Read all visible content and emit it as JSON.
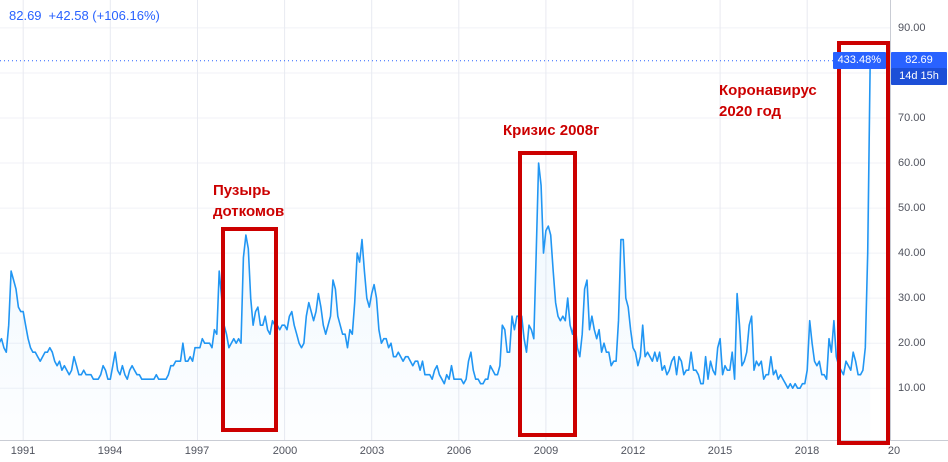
{
  "legend": {
    "price": "82.69",
    "change": "+42.58 (+106.16%)"
  },
  "price_axis": {
    "price_badge": "82.69",
    "countdown_badge": "14d 15h"
  },
  "change_badge": "433.48%",
  "annotations": {
    "dotcom": {
      "line1": "Пузырь",
      "line2": "доткомов"
    },
    "crisis2008": {
      "line1": "Кризис 2008г"
    },
    "covid": {
      "line1": "Коронавирус",
      "line2": "2020 год"
    }
  },
  "colors": {
    "accent_blue": "#2962ff",
    "line_blue": "#2196f3",
    "badge_blue": "#2962ff",
    "countdown_blue": "#1d4fd7",
    "annotation_red": "#cc0000",
    "grid_vertical": "#e8eaf1",
    "grid_horizontal": "#f0f2f7"
  },
  "chart_data": {
    "type": "line",
    "title": "Volatility index history with crisis annotations",
    "current_price": 82.69,
    "x_start_year": 1990.0,
    "x_step_months": 1,
    "x_visible_range": [
      1990.2,
      2020.85
    ],
    "ylim": [
      -1.5,
      96.2
    ],
    "y_ticks": [
      {
        "value": 90,
        "label": "90.00"
      },
      {
        "value": 80,
        "label": "80.00"
      },
      {
        "value": 70,
        "label": "70.00"
      },
      {
        "value": 60,
        "label": "60.00"
      },
      {
        "value": 50,
        "label": "50.00"
      },
      {
        "value": 40,
        "label": "40.00"
      },
      {
        "value": 30,
        "label": "30.00"
      },
      {
        "value": 20,
        "label": "20.00"
      },
      {
        "value": 10,
        "label": "10.00"
      }
    ],
    "x_ticks": [
      {
        "year": 1991,
        "label": "1991"
      },
      {
        "year": 1994,
        "label": "1994"
      },
      {
        "year": 1997,
        "label": "1997"
      },
      {
        "year": 2000,
        "label": "2000"
      },
      {
        "year": 2003,
        "label": "2003"
      },
      {
        "year": 2006,
        "label": "2006"
      },
      {
        "year": 2009,
        "label": "2009"
      },
      {
        "year": 2012,
        "label": "2012"
      },
      {
        "year": 2015,
        "label": "2015"
      },
      {
        "year": 2018,
        "label": "2018"
      },
      {
        "year": 2021,
        "label": "20"
      }
    ],
    "values": [
      23,
      22,
      20,
      21,
      19,
      18,
      24,
      36,
      34,
      32,
      28,
      27,
      27,
      24,
      21,
      19,
      18,
      18,
      17,
      16,
      17,
      18,
      18,
      19,
      18,
      16,
      15,
      16,
      14,
      15,
      14,
      13,
      14,
      17,
      15,
      13,
      13,
      14,
      13,
      13,
      13,
      12,
      12,
      12,
      13,
      15,
      14,
      12,
      12,
      15,
      18,
      14,
      13,
      15,
      13,
      12,
      14,
      15,
      14,
      13,
      13,
      12,
      12,
      12,
      12,
      12,
      12,
      13,
      12,
      12,
      12,
      12,
      13,
      15,
      15,
      16,
      16,
      16,
      20,
      16,
      16,
      17,
      16,
      19,
      19,
      19,
      21,
      20,
      20,
      20,
      19,
      23,
      22,
      36,
      30,
      24,
      22,
      19,
      20,
      21,
      20,
      21,
      20,
      39,
      44,
      41,
      30,
      24,
      27,
      28,
      24,
      24,
      26,
      23,
      22,
      25,
      24,
      24,
      23,
      24,
      24,
      23,
      26,
      27,
      24,
      22,
      20,
      19,
      20,
      26,
      29,
      27,
      25,
      27,
      31,
      28,
      24,
      22,
      24,
      26,
      34,
      32,
      26,
      24,
      22,
      22,
      19,
      23,
      22,
      29,
      40,
      38,
      43,
      36,
      30,
      28,
      31,
      33,
      30,
      23,
      20,
      21,
      21,
      19,
      20,
      17,
      17,
      18,
      17,
      16,
      17,
      17,
      16,
      15,
      16,
      16,
      14,
      16,
      13,
      13,
      13,
      12,
      14,
      15,
      13,
      12,
      11,
      13,
      12,
      15,
      12,
      12,
      12,
      12,
      11,
      12,
      16,
      18,
      14,
      12,
      12,
      11,
      11,
      12,
      12,
      15,
      14,
      13,
      13,
      15,
      24,
      23,
      18,
      18,
      26,
      23,
      26,
      26,
      26,
      21,
      18,
      24,
      23,
      21,
      40,
      60,
      55,
      40,
      45,
      46,
      44,
      36,
      29,
      26,
      25,
      26,
      25,
      30,
      24,
      22,
      25,
      19,
      17,
      22,
      32,
      34,
      23,
      26,
      23,
      21,
      23,
      18,
      20,
      18,
      18,
      15,
      16,
      16,
      25,
      43,
      43,
      30,
      28,
      23,
      19,
      18,
      15,
      17,
      24,
      17,
      18,
      17,
      16,
      18,
      16,
      18,
      14,
      15,
      13,
      14,
      16,
      17,
      13,
      17,
      16,
      13,
      14,
      14,
      18,
      14,
      14,
      13,
      11,
      11,
      17,
      12,
      16,
      14,
      13,
      19,
      21,
      13,
      15,
      14,
      14,
      18,
      12,
      31,
      24,
      15,
      16,
      18,
      24,
      26,
      14,
      16,
      15,
      16,
      12,
      13,
      13,
      17,
      13,
      14,
      12,
      13,
      12,
      11,
      10,
      11,
      10,
      11,
      10,
      10,
      11,
      11,
      14,
      25,
      20,
      16,
      15,
      16,
      13,
      13,
      12,
      21,
      18,
      25,
      17,
      15,
      14,
      13,
      16,
      15,
      14,
      18,
      16,
      13,
      13,
      14,
      19,
      40,
      82.69
    ]
  }
}
